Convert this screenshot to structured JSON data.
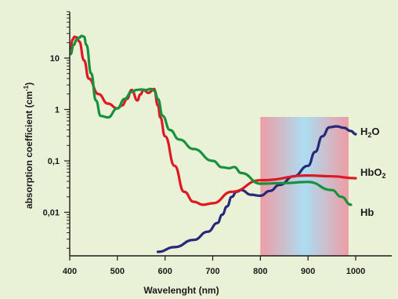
{
  "chart_data": {
    "type": "line",
    "title": "",
    "xlabel": "Wavelenght (nm)",
    "ylabel": "absorption coefficient (cm",
    "ylabel_sup": "-1",
    "ylabel_end": ")",
    "xlim": [
      400,
      1000
    ],
    "ylim": [
      0.001,
      30
    ],
    "yscale": "log",
    "grid": false,
    "x_ticks": [
      400,
      500,
      600,
      700,
      800,
      900,
      1000
    ],
    "x_tick_labels": [
      "400",
      "500",
      "600",
      "700",
      "800",
      "900",
      "1000"
    ],
    "y_major_ticks": [
      0.01,
      0.1,
      1,
      10
    ],
    "y_tick_labels": [
      "0,01",
      "0,1",
      "1",
      "10"
    ],
    "highlight_band": {
      "x_range": [
        800,
        985
      ],
      "colors": [
        "#ee98a2",
        "#a9dcf3",
        "#ee98a2"
      ]
    },
    "series": [
      {
        "name": "Hb",
        "color": "#18913c",
        "label_main": "Hb",
        "label_sub": "",
        "x": [
          402,
          408,
          415,
          420,
          425,
          430,
          435,
          445,
          455,
          465,
          480,
          500,
          515,
          530,
          540,
          550,
          560,
          570,
          578,
          585,
          595,
          610,
          630,
          660,
          700,
          720,
          735,
          745,
          760,
          800,
          850,
          900,
          950,
          970,
          990
        ],
        "values": [
          12,
          18,
          23,
          25,
          27,
          26,
          18,
          5,
          1.5,
          0.75,
          0.7,
          1.05,
          1.6,
          2.2,
          2.4,
          2.45,
          2.4,
          2.5,
          2.3,
          1.6,
          0.75,
          0.4,
          0.26,
          0.17,
          0.1,
          0.075,
          0.072,
          0.076,
          0.058,
          0.036,
          0.037,
          0.039,
          0.027,
          0.02,
          0.014
        ]
      },
      {
        "name": "HbO2",
        "color": "#dd1923",
        "label_main": "HbO",
        "label_sub": "2",
        "x": [
          402,
          406,
          410,
          415,
          420,
          430,
          440,
          460,
          480,
          500,
          510,
          520,
          530,
          542,
          548,
          555,
          565,
          577,
          585,
          590,
          600,
          620,
          640,
          660,
          680,
          700,
          740,
          800,
          900,
          950,
          1000
        ],
        "values": [
          15,
          23,
          26,
          25,
          21,
          9,
          4,
          2,
          1.3,
          1.05,
          1.2,
          1.6,
          2.4,
          1.5,
          1.95,
          2.4,
          2.1,
          2.5,
          1.2,
          0.7,
          0.3,
          0.08,
          0.025,
          0.016,
          0.014,
          0.015,
          0.025,
          0.042,
          0.052,
          0.05,
          0.046
        ]
      },
      {
        "name": "H2O",
        "color": "#262979",
        "label_main": "H",
        "label_sub": "2",
        "label_end": "O",
        "x": [
          585,
          620,
          660,
          690,
          710,
          720,
          730,
          740,
          750,
          760,
          780,
          800,
          820,
          840,
          870,
          900,
          915,
          930,
          945,
          960,
          975,
          990,
          1000
        ],
        "values": [
          0.0017,
          0.0021,
          0.0029,
          0.0042,
          0.0062,
          0.009,
          0.013,
          0.02,
          0.025,
          0.027,
          0.022,
          0.021,
          0.026,
          0.034,
          0.05,
          0.08,
          0.15,
          0.3,
          0.45,
          0.47,
          0.44,
          0.38,
          0.33
        ]
      }
    ]
  }
}
